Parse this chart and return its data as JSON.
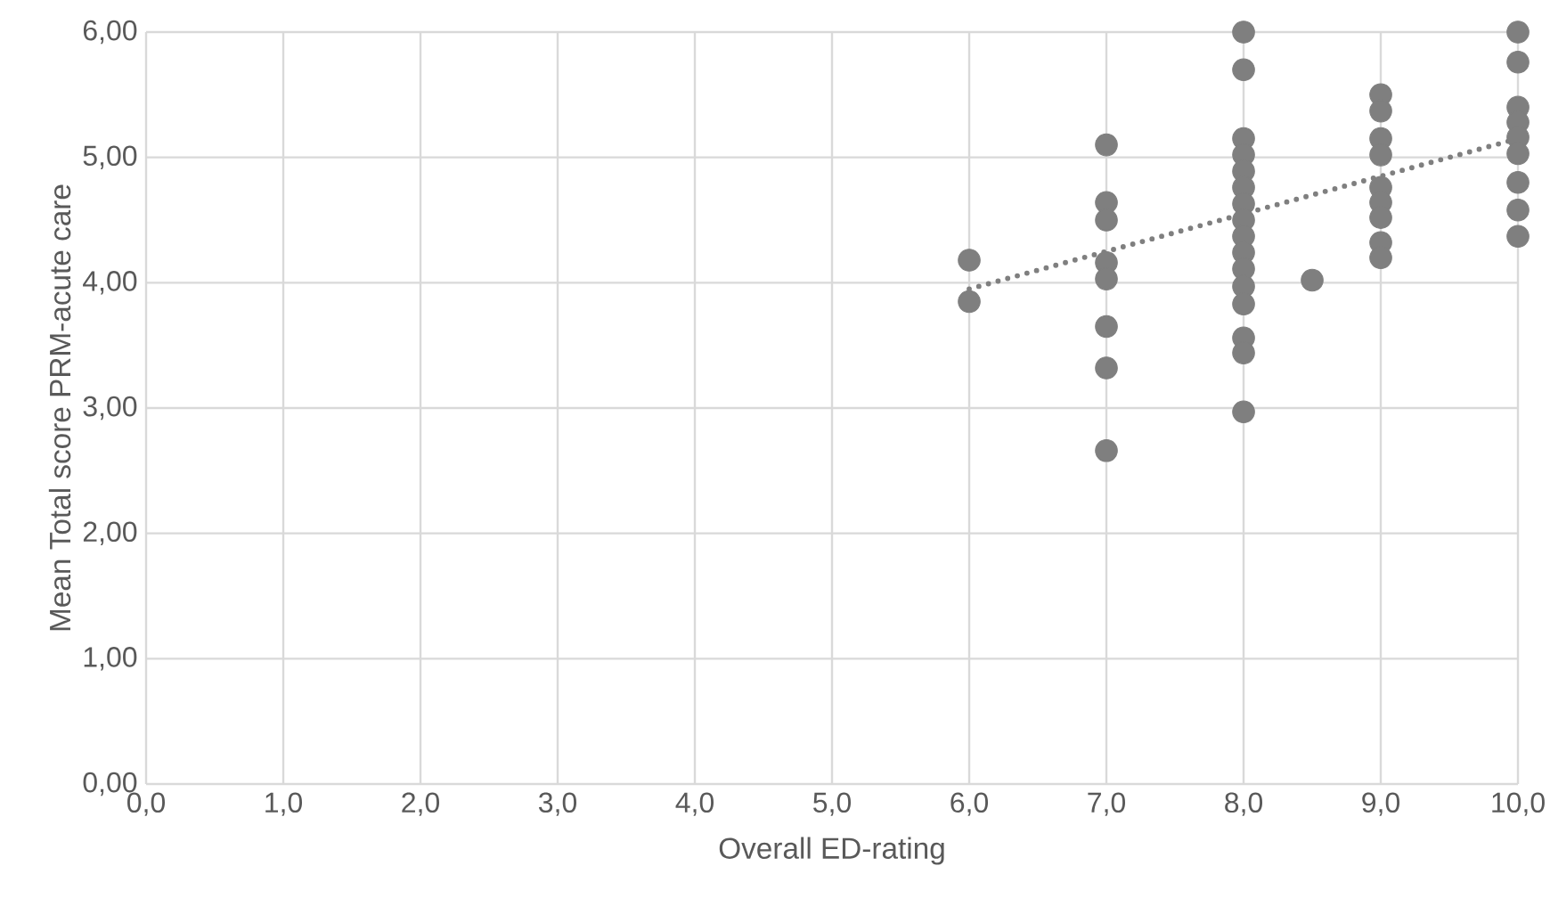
{
  "chart_data": {
    "type": "scatter",
    "xlabel": "Overall ED-rating",
    "ylabel": "Mean Total score PRM-acute care",
    "xlim": [
      0,
      10
    ],
    "ylim": [
      0,
      6
    ],
    "xticks": [
      {
        "value": 0,
        "label": "0,0"
      },
      {
        "value": 1,
        "label": "1,0"
      },
      {
        "value": 2,
        "label": "2,0"
      },
      {
        "value": 3,
        "label": "3,0"
      },
      {
        "value": 4,
        "label": "4,0"
      },
      {
        "value": 5,
        "label": "5,0"
      },
      {
        "value": 6,
        "label": "6,0"
      },
      {
        "value": 7,
        "label": "7,0"
      },
      {
        "value": 8,
        "label": "8,0"
      },
      {
        "value": 9,
        "label": "9,0"
      },
      {
        "value": 10,
        "label": "10,0"
      }
    ],
    "yticks": [
      {
        "value": 0,
        "label": "0,00"
      },
      {
        "value": 1,
        "label": "1,00"
      },
      {
        "value": 2,
        "label": "2,00"
      },
      {
        "value": 3,
        "label": "3,00"
      },
      {
        "value": 4,
        "label": "4,00"
      },
      {
        "value": 5,
        "label": "5,00"
      },
      {
        "value": 6,
        "label": "6,00"
      }
    ],
    "grid": true,
    "marker": "circle",
    "series": [
      {
        "color": "#7f7f7f",
        "x": [
          6,
          6,
          7,
          7,
          7,
          7,
          7,
          7,
          7,
          7,
          8,
          8,
          8,
          8,
          8,
          8,
          8,
          8,
          8,
          8,
          8,
          8,
          8,
          8,
          8,
          8,
          8.5,
          9,
          9,
          9,
          9,
          9,
          9,
          9,
          9,
          9,
          10,
          10,
          10,
          10,
          10,
          10,
          10,
          10,
          10
        ],
        "values": [
          4.18,
          3.85,
          5.1,
          4.64,
          4.5,
          4.16,
          4.03,
          3.65,
          3.32,
          2.66,
          6.0,
          5.7,
          5.15,
          5.02,
          4.89,
          4.76,
          4.63,
          4.5,
          4.37,
          4.24,
          4.11,
          3.97,
          3.83,
          3.56,
          3.44,
          2.97,
          4.02,
          5.5,
          5.37,
          5.15,
          5.02,
          4.76,
          4.64,
          4.52,
          4.32,
          4.2,
          6.0,
          5.76,
          5.4,
          5.28,
          5.16,
          5.03,
          4.8,
          4.58,
          4.37
        ]
      },
      {
        "type": "line",
        "color": "#7f7f7f",
        "line_style": "dotted",
        "marker": "none",
        "x": [
          6,
          10
        ],
        "values": [
          3.95,
          5.15
        ]
      }
    ]
  }
}
